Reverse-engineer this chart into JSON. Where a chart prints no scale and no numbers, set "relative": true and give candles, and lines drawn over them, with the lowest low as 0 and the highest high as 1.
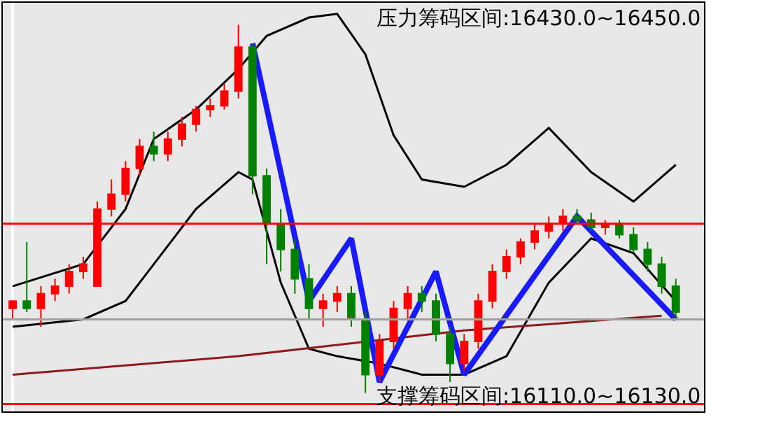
{
  "chart_data": {
    "type": "candlestick",
    "relative": true,
    "categories": [
      null,
      null,
      null,
      null,
      null,
      null,
      null,
      null,
      null,
      null,
      null,
      null,
      null,
      null,
      null,
      null,
      null,
      null,
      null,
      null,
      null,
      null,
      null,
      null,
      null,
      null,
      null,
      null,
      null,
      null,
      null,
      null,
      null,
      null,
      null,
      null,
      null,
      null,
      null,
      null,
      null,
      null,
      null,
      null,
      null,
      null,
      null,
      null
    ],
    "ohlc": [
      [
        0.23,
        0.25,
        0.2,
        0.25
      ],
      [
        0.25,
        0.41,
        0.22,
        0.23
      ],
      [
        0.23,
        0.29,
        0.18,
        0.27
      ],
      [
        0.27,
        0.31,
        0.25,
        0.29
      ],
      [
        0.29,
        0.35,
        0.27,
        0.33
      ],
      [
        0.33,
        0.37,
        0.31,
        0.35
      ],
      [
        0.29,
        0.52,
        0.29,
        0.5
      ],
      [
        0.5,
        0.58,
        0.48,
        0.54
      ],
      [
        0.54,
        0.63,
        0.52,
        0.61
      ],
      [
        0.61,
        0.69,
        0.59,
        0.67
      ],
      [
        0.67,
        0.71,
        0.63,
        0.65
      ],
      [
        0.65,
        0.71,
        0.63,
        0.69
      ],
      [
        0.69,
        0.75,
        0.67,
        0.73
      ],
      [
        0.73,
        0.78,
        0.71,
        0.77
      ],
      [
        0.77,
        0.8,
        0.75,
        0.78
      ],
      [
        0.78,
        0.84,
        0.77,
        0.82
      ],
      [
        0.82,
        1.0,
        0.8,
        0.94
      ],
      [
        0.94,
        0.95,
        0.54,
        0.59
      ],
      [
        0.59,
        0.61,
        0.35,
        0.46
      ],
      [
        0.46,
        0.5,
        0.33,
        0.39
      ],
      [
        0.39,
        0.42,
        0.27,
        0.31
      ],
      [
        0.31,
        0.35,
        0.2,
        0.23
      ],
      [
        0.23,
        0.27,
        0.18,
        0.25
      ],
      [
        0.25,
        0.29,
        0.22,
        0.27
      ],
      [
        0.27,
        0.29,
        0.18,
        0.2
      ],
      [
        0.2,
        0.22,
        0.0,
        0.05
      ],
      [
        0.05,
        0.16,
        0.03,
        0.14
      ],
      [
        0.14,
        0.25,
        0.12,
        0.23
      ],
      [
        0.23,
        0.29,
        0.2,
        0.27
      ],
      [
        0.27,
        0.29,
        0.22,
        0.25
      ],
      [
        0.25,
        0.27,
        0.14,
        0.16
      ],
      [
        0.16,
        0.18,
        0.03,
        0.08
      ],
      [
        0.08,
        0.16,
        0.06,
        0.14
      ],
      [
        0.14,
        0.27,
        0.12,
        0.25
      ],
      [
        0.25,
        0.35,
        0.23,
        0.33
      ],
      [
        0.33,
        0.39,
        0.31,
        0.37
      ],
      [
        0.37,
        0.42,
        0.35,
        0.41
      ],
      [
        0.41,
        0.46,
        0.39,
        0.44
      ],
      [
        0.44,
        0.48,
        0.42,
        0.46
      ],
      [
        0.46,
        0.5,
        0.44,
        0.48
      ],
      [
        0.48,
        0.5,
        0.46,
        0.47
      ],
      [
        0.47,
        0.49,
        0.44,
        0.45
      ],
      [
        0.45,
        0.47,
        0.43,
        0.46
      ],
      [
        0.46,
        0.47,
        0.42,
        0.43
      ],
      [
        0.43,
        0.45,
        0.38,
        0.39
      ],
      [
        0.39,
        0.41,
        0.33,
        0.35
      ],
      [
        0.35,
        0.37,
        0.27,
        0.29
      ],
      [
        0.29,
        0.31,
        0.2,
        0.22
      ]
    ],
    "series": [
      {
        "type": "line",
        "color": "#000000",
        "values": [
          0.29,
          null,
          null,
          null,
          null,
          0.35,
          null,
          null,
          0.5,
          null,
          0.69,
          null,
          null,
          0.77,
          null,
          null,
          0.88,
          null,
          0.97,
          null,
          null,
          1.02,
          null,
          1.03,
          null,
          0.92,
          null,
          0.7,
          null,
          0.58,
          null,
          null,
          0.56,
          null,
          null,
          0.62,
          null,
          null,
          0.72,
          null,
          null,
          0.6,
          null,
          null,
          0.52,
          null,
          null,
          0.62
        ]
      },
      {
        "type": "line",
        "color": "#000000",
        "values": [
          0.18,
          null,
          null,
          null,
          null,
          0.2,
          null,
          null,
          0.25,
          null,
          0.35,
          null,
          null,
          0.5,
          null,
          null,
          0.6,
          0.58,
          null,
          0.3,
          null,
          0.12,
          null,
          0.1,
          null,
          null,
          0.08,
          null,
          null,
          0.05,
          null,
          null,
          0.05,
          null,
          null,
          0.1,
          null,
          null,
          0.3,
          null,
          null,
          0.42,
          null,
          null,
          0.38,
          null,
          null,
          0.25
        ]
      },
      {
        "type": "line",
        "color": "#8b1a1a",
        "values": [
          0.05,
          null,
          null,
          null,
          null,
          null,
          null,
          null,
          null,
          null,
          null,
          null,
          null,
          null,
          null,
          null,
          0.1,
          null,
          null,
          null,
          null,
          null,
          null,
          null,
          null,
          null,
          null,
          null,
          null,
          null,
          null,
          null,
          0.17,
          null,
          null,
          null,
          null,
          null,
          null,
          null,
          null,
          null,
          null,
          null,
          null,
          null,
          0.21,
          null
        ]
      },
      {
        "type": "line",
        "color": "#1a1aff",
        "values": [
          null,
          null,
          null,
          null,
          null,
          null,
          null,
          null,
          null,
          null,
          null,
          null,
          null,
          null,
          null,
          null,
          null,
          0.95,
          null,
          null,
          null,
          0.25,
          null,
          null,
          0.42,
          null,
          0.03,
          null,
          null,
          null,
          0.33,
          null,
          0.05,
          null,
          null,
          null,
          null,
          null,
          null,
          null,
          0.48,
          null,
          null,
          null,
          null,
          null,
          null,
          0.2
        ]
      }
    ],
    "ref_lines": [
      {
        "axis": "y",
        "value": 0.46,
        "color": "#ff0000"
      },
      {
        "axis": "y",
        "value": 0.2,
        "color": "#a0a0a0"
      },
      {
        "axis": "y",
        "value": -0.03,
        "color": "#ff0000"
      }
    ],
    "annotations": [
      "压力筹码区间:16430.0~16450.0",
      "支撑筹码区间:16110.0~16130.0"
    ]
  }
}
